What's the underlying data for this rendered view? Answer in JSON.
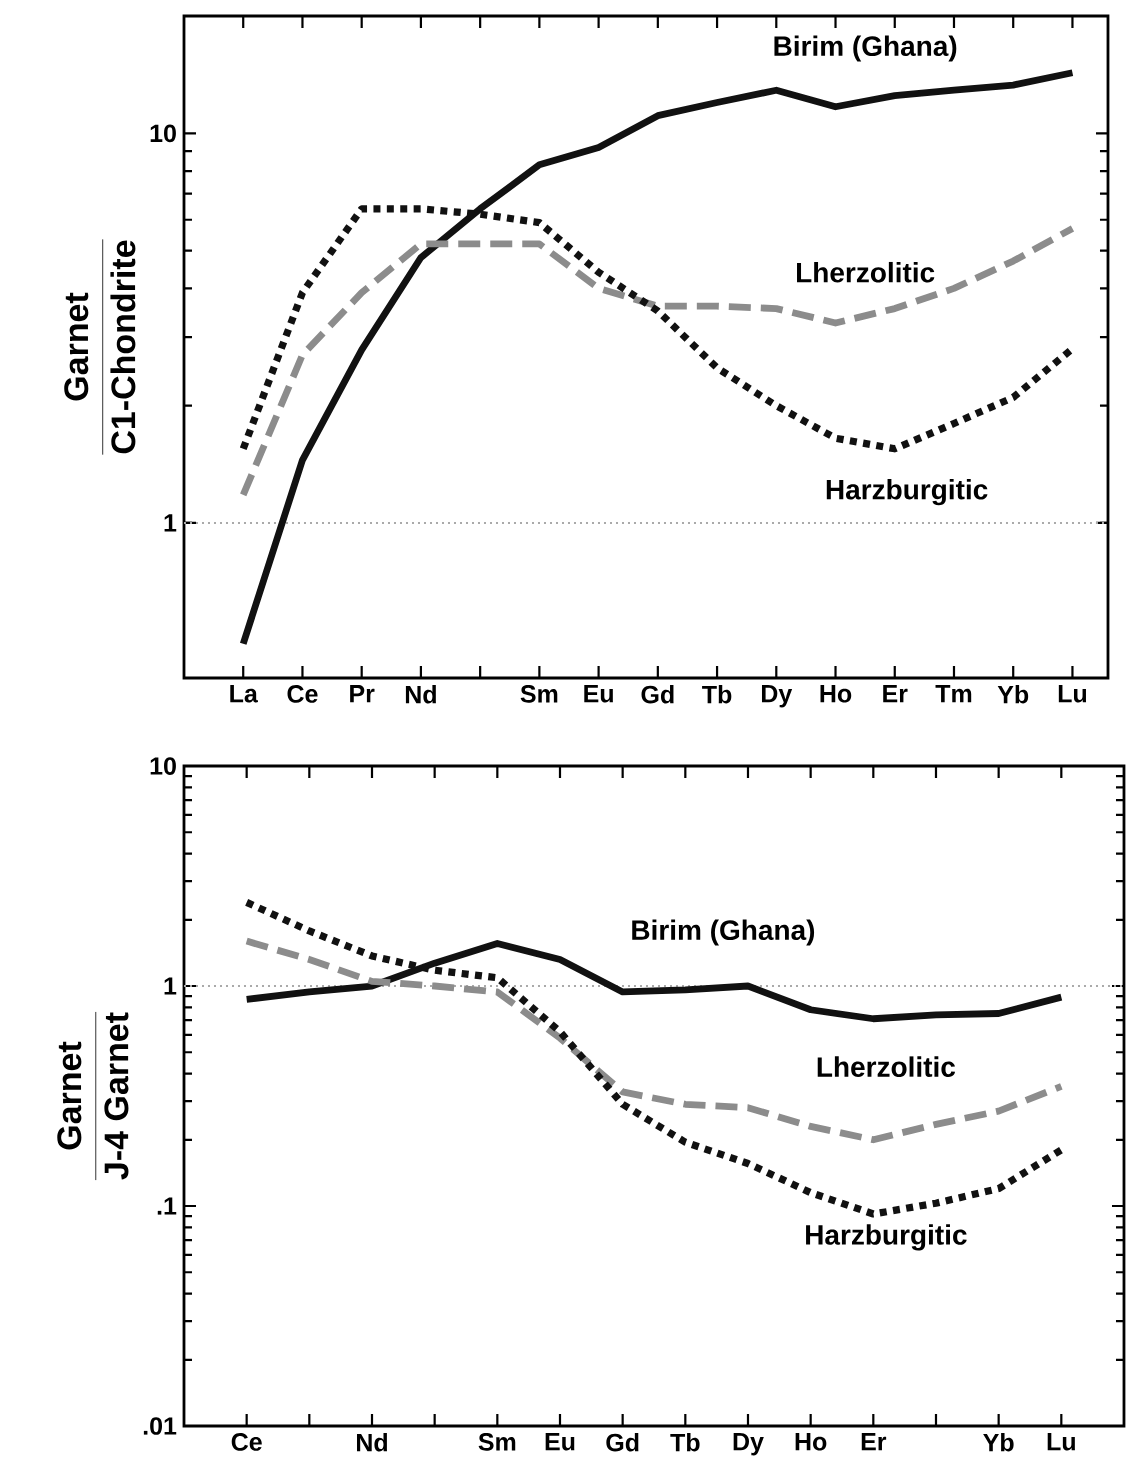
{
  "chart_data": [
    {
      "type": "line",
      "log": "y",
      "ylabel": "\\frac{\\textbf{Garnet}}{\\textbf{C1-Chondrite}}",
      "categories": [
        "La",
        "Ce",
        "Pr",
        "Nd",
        null,
        "Sm",
        "Eu",
        "Gd",
        "Tb",
        "Dy",
        "Ho",
        "Er",
        "Tm",
        "Yb",
        "Lu"
      ],
      "ylim": [
        0.4,
        20
      ],
      "yticks": [
        1,
        10
      ],
      "ref_lines": [
        {
          "axis": "y",
          "value": 1,
          "color": "#aaaaaa",
          "line_style": "dotted"
        }
      ],
      "series": [
        {
          "name": "Birim (Ghana)",
          "color": "#111111",
          "line_style": "solid",
          "values": [
            0.49,
            1.45,
            2.78,
            4.8,
            6.4,
            8.3,
            9.2,
            11.1,
            12.0,
            12.9,
            11.7,
            12.5,
            12.9,
            13.3,
            14.3
          ]
        },
        {
          "name": "Lherzolitic",
          "color": "#8c8c8c",
          "line_style": "dashed",
          "values": [
            1.18,
            2.7,
            3.9,
            5.2,
            5.2,
            5.2,
            4.0,
            3.6,
            3.6,
            3.55,
            3.26,
            3.55,
            4.0,
            4.7,
            5.7
          ]
        },
        {
          "name": "Harzburgitic",
          "color": "#111111",
          "line_style": "dotted",
          "values": [
            1.55,
            3.9,
            6.4,
            6.4,
            6.2,
            5.9,
            4.4,
            3.5,
            2.5,
            2.0,
            1.65,
            1.55,
            1.8,
            2.1,
            2.8
          ]
        }
      ]
    },
    {
      "type": "line",
      "log": "y",
      "ylabel": "\\frac{\\textbf{Garnet}}{\\textbf{J-4 Garnet}}",
      "categories": [
        "Ce",
        null,
        "Nd",
        null,
        "Sm",
        "Eu",
        "Gd",
        "Tb",
        "Dy",
        "Ho",
        "Er",
        null,
        "Yb",
        "Lu"
      ],
      "ylim": [
        0.01,
        10
      ],
      "yticks": [
        {
          "value": 0.01,
          "label": ".01"
        },
        {
          "value": 0.1,
          "label": ".1"
        },
        1,
        10
      ],
      "ref_lines": [
        {
          "axis": "y",
          "value": 1,
          "color": "#aaaaaa",
          "line_style": "dotted"
        }
      ],
      "series": [
        {
          "name": "Birim (Ghana)",
          "color": "#111111",
          "line_style": "solid",
          "values": [
            0.87,
            0.94,
            1.0,
            1.27,
            1.56,
            1.32,
            0.94,
            0.96,
            1.0,
            0.78,
            0.71,
            0.74,
            0.75,
            0.89
          ]
        },
        {
          "name": "Lherzolitic",
          "color": "#8c8c8c",
          "line_style": "dashed",
          "values": [
            1.6,
            1.32,
            1.05,
            1.0,
            0.94,
            0.58,
            0.33,
            0.29,
            0.28,
            0.23,
            0.2,
            0.235,
            0.27,
            0.35
          ]
        },
        {
          "name": "Harzburgitic",
          "color": "#111111",
          "line_style": "dotted",
          "values": [
            2.4,
            1.78,
            1.37,
            1.18,
            1.09,
            0.62,
            0.29,
            0.195,
            0.156,
            0.115,
            0.092,
            0.103,
            0.12,
            0.18
          ]
        }
      ]
    }
  ]
}
